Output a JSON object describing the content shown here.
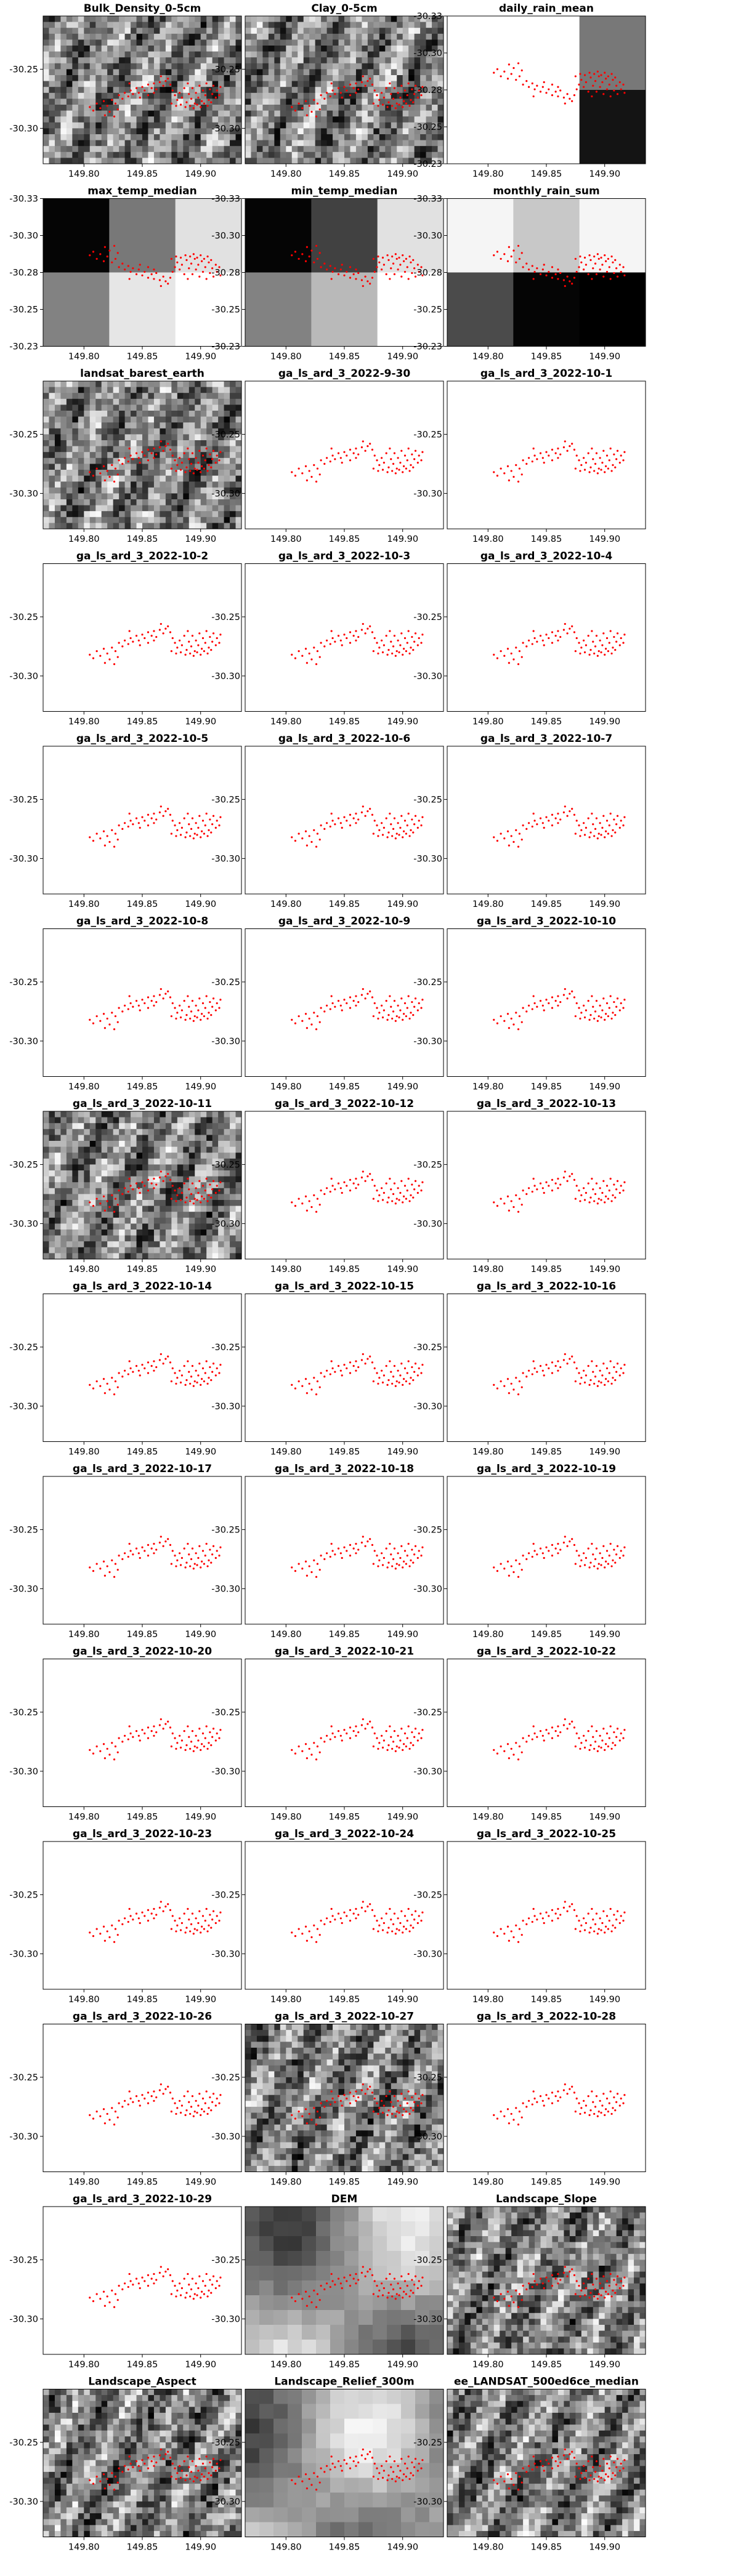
{
  "chart_data": {
    "type": "raster-map-grid",
    "x_ticks": [
      "149.80",
      "149.85",
      "149.90"
    ],
    "y_ticks_default": [
      "-30.25",
      "-30.30"
    ],
    "y_ticks_climate": [
      "-30.33",
      "-30.30",
      "-30.28",
      "-30.25",
      "-30.23"
    ],
    "xlim": [
      149.765,
      149.935
    ],
    "ylim": [
      -30.33,
      -30.205
    ],
    "point_color": "#ff0000",
    "panels": [
      {
        "title": "Bulk_Density_0-5cm",
        "raster": "noise",
        "seed": 11,
        "axes": "default"
      },
      {
        "title": "Clay_0-5cm",
        "raster": "noise",
        "seed": 23,
        "axes": "default"
      },
      {
        "title": "daily_rain_mean",
        "raster": "blocks",
        "blocks": [
          [
            255,
            255,
            120
          ],
          [
            255,
            255,
            20
          ]
        ],
        "axes": "climate"
      },
      {
        "title": "max_temp_median",
        "raster": "blocks",
        "blocks": [
          [
            5,
            120,
            225
          ],
          [
            130,
            230,
            255
          ]
        ],
        "axes": "climate"
      },
      {
        "title": "min_temp_median",
        "raster": "blocks",
        "blocks": [
          [
            5,
            65,
            225
          ],
          [
            130,
            185,
            255
          ]
        ],
        "axes": "climate"
      },
      {
        "title": "monthly_rain_sum",
        "raster": "blocks",
        "blocks": [
          [
            245,
            200,
            245
          ],
          [
            75,
            5,
            0
          ]
        ],
        "axes": "climate"
      },
      {
        "title": "landsat_barest_earth",
        "raster": "noise",
        "seed": 37,
        "axes": "default"
      },
      {
        "title": "ga_ls_ard_3_2022-9-30",
        "raster": "none",
        "axes": "default"
      },
      {
        "title": "ga_ls_ard_3_2022-10-1",
        "raster": "none",
        "axes": "default"
      },
      {
        "title": "ga_ls_ard_3_2022-10-2",
        "raster": "none",
        "axes": "default"
      },
      {
        "title": "ga_ls_ard_3_2022-10-3",
        "raster": "none",
        "axes": "default"
      },
      {
        "title": "ga_ls_ard_3_2022-10-4",
        "raster": "none",
        "axes": "default"
      },
      {
        "title": "ga_ls_ard_3_2022-10-5",
        "raster": "none",
        "axes": "default"
      },
      {
        "title": "ga_ls_ard_3_2022-10-6",
        "raster": "none",
        "axes": "default"
      },
      {
        "title": "ga_ls_ard_3_2022-10-7",
        "raster": "none",
        "axes": "default"
      },
      {
        "title": "ga_ls_ard_3_2022-10-8",
        "raster": "none",
        "axes": "default"
      },
      {
        "title": "ga_ls_ard_3_2022-10-9",
        "raster": "none",
        "axes": "default"
      },
      {
        "title": "ga_ls_ard_3_2022-10-10",
        "raster": "none",
        "axes": "default"
      },
      {
        "title": "ga_ls_ard_3_2022-10-11",
        "raster": "noise",
        "seed": 53,
        "axes": "default"
      },
      {
        "title": "ga_ls_ard_3_2022-10-12",
        "raster": "none",
        "axes": "default"
      },
      {
        "title": "ga_ls_ard_3_2022-10-13",
        "raster": "none",
        "axes": "default"
      },
      {
        "title": "ga_ls_ard_3_2022-10-14",
        "raster": "none",
        "axes": "default"
      },
      {
        "title": "ga_ls_ard_3_2022-10-15",
        "raster": "none",
        "axes": "default"
      },
      {
        "title": "ga_ls_ard_3_2022-10-16",
        "raster": "none",
        "axes": "default"
      },
      {
        "title": "ga_ls_ard_3_2022-10-17",
        "raster": "none",
        "axes": "default"
      },
      {
        "title": "ga_ls_ard_3_2022-10-18",
        "raster": "none",
        "axes": "default"
      },
      {
        "title": "ga_ls_ard_3_2022-10-19",
        "raster": "none",
        "axes": "default"
      },
      {
        "title": "ga_ls_ard_3_2022-10-20",
        "raster": "none",
        "axes": "default"
      },
      {
        "title": "ga_ls_ard_3_2022-10-21",
        "raster": "none",
        "axes": "default"
      },
      {
        "title": "ga_ls_ard_3_2022-10-22",
        "raster": "none",
        "axes": "default"
      },
      {
        "title": "ga_ls_ard_3_2022-10-23",
        "raster": "none",
        "axes": "default"
      },
      {
        "title": "ga_ls_ard_3_2022-10-24",
        "raster": "none",
        "axes": "default"
      },
      {
        "title": "ga_ls_ard_3_2022-10-25",
        "raster": "none",
        "axes": "default"
      },
      {
        "title": "ga_ls_ard_3_2022-10-26",
        "raster": "none",
        "axes": "default"
      },
      {
        "title": "ga_ls_ard_3_2022-10-27",
        "raster": "noise",
        "seed": 71,
        "axes": "default"
      },
      {
        "title": "ga_ls_ard_3_2022-10-28",
        "raster": "none",
        "axes": "default"
      },
      {
        "title": "ga_ls_ard_3_2022-10-29",
        "raster": "none",
        "axes": "default"
      },
      {
        "title": "DEM",
        "raster": "smooth",
        "seed": 83,
        "axes": "default"
      },
      {
        "title": "Landscape_Slope",
        "raster": "noise",
        "seed": 97,
        "axes": "default"
      },
      {
        "title": "Landscape_Aspect",
        "raster": "noise",
        "seed": 101,
        "axes": "default"
      },
      {
        "title": "Landscape_Relief_300m",
        "raster": "smooth",
        "seed": 113,
        "axes": "default"
      },
      {
        "title": "ee_LANDSAT_500ed6ce_median",
        "raster": "noise",
        "seed": 127,
        "axes": "default"
      }
    ],
    "sample_points": [
      [
        149.805,
        -30.282
      ],
      [
        149.808,
        -30.285
      ],
      [
        149.811,
        -30.279
      ],
      [
        149.814,
        -30.283
      ],
      [
        149.817,
        -30.277
      ],
      [
        149.82,
        -30.281
      ],
      [
        149.822,
        -30.286
      ],
      [
        149.824,
        -30.276
      ],
      [
        149.827,
        -30.279
      ],
      [
        149.829,
        -30.284
      ],
      [
        149.83,
        -30.272
      ],
      [
        149.833,
        -30.275
      ],
      [
        149.835,
        -30.27
      ],
      [
        149.838,
        -30.273
      ],
      [
        149.84,
        -30.268
      ],
      [
        149.842,
        -30.271
      ],
      [
        149.845,
        -30.266
      ],
      [
        149.847,
        -30.27
      ],
      [
        149.85,
        -30.265
      ],
      [
        149.852,
        -30.268
      ],
      [
        149.855,
        -30.263
      ],
      [
        149.858,
        -30.266
      ],
      [
        149.86,
        -30.262
      ],
      [
        149.862,
        -30.267
      ],
      [
        149.865,
        -30.261
      ],
      [
        149.868,
        -30.264
      ],
      [
        149.87,
        -30.26
      ],
      [
        149.872,
        -30.258
      ],
      [
        149.874,
        -30.263
      ],
      [
        149.876,
        -30.268
      ],
      [
        149.878,
        -30.272
      ],
      [
        149.88,
        -30.276
      ],
      [
        149.882,
        -30.27
      ],
      [
        149.884,
        -30.274
      ],
      [
        149.886,
        -30.266
      ],
      [
        149.888,
        -30.278
      ],
      [
        149.889,
        -30.262
      ],
      [
        149.89,
        -30.271
      ],
      [
        149.892,
        -30.275
      ],
      [
        149.893,
        -30.266
      ],
      [
        149.895,
        -30.279
      ],
      [
        149.896,
        -30.27
      ],
      [
        149.898,
        -30.274
      ],
      [
        149.899,
        -30.264
      ],
      [
        149.901,
        -30.277
      ],
      [
        149.902,
        -30.268
      ],
      [
        149.904,
        -30.272
      ],
      [
        149.905,
        -30.262
      ],
      [
        149.907,
        -30.276
      ],
      [
        149.908,
        -30.267
      ],
      [
        149.91,
        -30.271
      ],
      [
        149.911,
        -30.264
      ],
      [
        149.913,
        -30.274
      ],
      [
        149.914,
        -30.268
      ],
      [
        149.916,
        -30.272
      ],
      [
        149.917,
        -30.265
      ],
      [
        149.86,
        -30.27
      ],
      [
        149.855,
        -30.272
      ],
      [
        149.848,
        -30.274
      ],
      [
        149.875,
        -30.279
      ],
      [
        149.879,
        -30.281
      ],
      [
        149.883,
        -30.28
      ],
      [
        149.887,
        -30.282
      ],
      [
        149.891,
        -30.281
      ],
      [
        149.894,
        -30.283
      ],
      [
        149.897,
        -30.28
      ],
      [
        149.9,
        -30.282
      ],
      [
        149.903,
        -30.279
      ],
      [
        149.906,
        -30.281
      ],
      [
        149.909,
        -30.278
      ],
      [
        149.818,
        -30.289
      ],
      [
        149.826,
        -30.29
      ],
      [
        149.839,
        -30.262
      ],
      [
        149.866,
        -30.256
      ]
    ]
  }
}
